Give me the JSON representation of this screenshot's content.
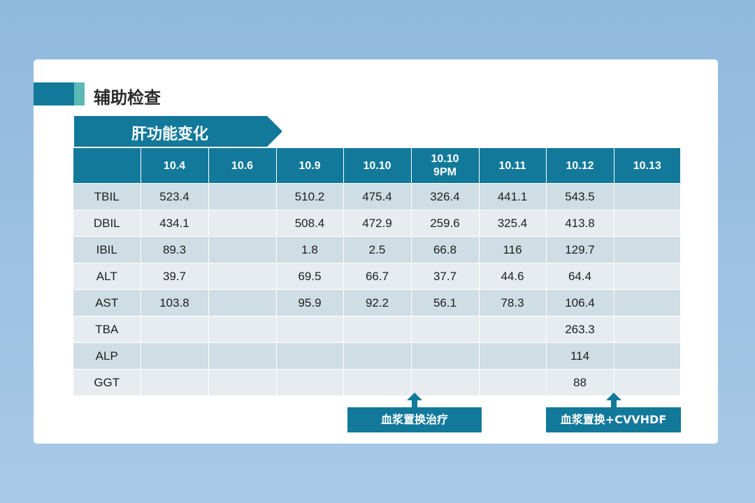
{
  "section": {
    "title": "辅助检查"
  },
  "table_title": "肝功能变化",
  "table": {
    "headers": [
      "",
      "10.4",
      "10.6",
      "10.9",
      "10.10",
      "10.10\n9PM",
      "10.11",
      "10.12",
      "10.13"
    ],
    "rows": [
      [
        "TBIL",
        "523.4",
        "",
        "510.2",
        "475.4",
        "326.4",
        "441.1",
        "543.5",
        ""
      ],
      [
        "DBIL",
        "434.1",
        "",
        "508.4",
        "472.9",
        "259.6",
        "325.4",
        "413.8",
        ""
      ],
      [
        "IBIL",
        "89.3",
        "",
        "1.8",
        "2.5",
        "66.8",
        "116",
        "129.7",
        ""
      ],
      [
        "ALT",
        "39.7",
        "",
        "69.5",
        "66.7",
        "37.7",
        "44.6",
        "64.4",
        ""
      ],
      [
        "AST",
        "103.8",
        "",
        "95.9",
        "92.2",
        "56.1",
        "78.3",
        "106.4",
        ""
      ],
      [
        "TBA",
        "",
        "",
        "",
        "",
        "",
        "",
        "263.3",
        ""
      ],
      [
        "ALP",
        "",
        "",
        "",
        "",
        "",
        "",
        "114",
        ""
      ],
      [
        "GGT",
        "",
        "",
        "",
        "",
        "",
        "",
        "88",
        ""
      ]
    ]
  },
  "annotations": [
    {
      "label": "血浆置换治疗"
    },
    {
      "label": "血浆置换+CVVHDF"
    }
  ],
  "colors": {
    "primary": "#12799a",
    "accent": "#5ab8b5",
    "row_dark": "#cfdde4",
    "row_light": "#e6ecef",
    "background": "#8fb9dd"
  }
}
